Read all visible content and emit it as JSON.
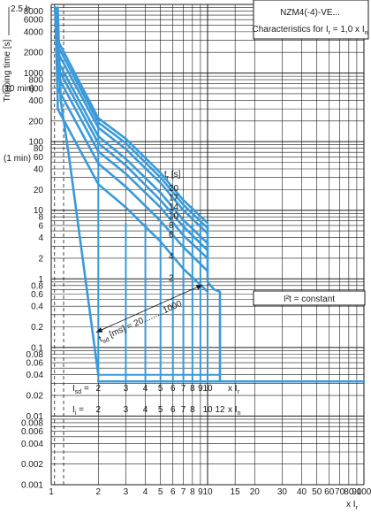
{
  "chart_data": {
    "type": "line",
    "title": "NZM4(-4)-VE...",
    "subtitle": "Characteristics for I",
    "subtitle_sub": "r",
    "subtitle_mid": " = 1,0 x I",
    "subtitle_sub2": "n",
    "ylabel": "Tripping time [s]",
    "y_top_label": "2.5 h",
    "y_extra_labels": [
      "(10 min)",
      "(1 min)"
    ],
    "xlabel": "x I",
    "xlabel_sub": "r",
    "x_scale": "log",
    "y_scale": "log",
    "xlim": [
      1,
      100
    ],
    "ylim": [
      0.001,
      10000
    ],
    "x_ticks": [
      "1",
      "2",
      "3",
      "4",
      "5",
      "6",
      "7",
      "8",
      "9",
      "10",
      "15",
      "20",
      "30",
      "40",
      "50",
      "60",
      "70",
      "80",
      "90",
      "100"
    ],
    "y_ticks": [
      "8000",
      "6000",
      "4000",
      "2000",
      "1000",
      "800",
      "600",
      "400",
      "200",
      "100",
      "80",
      "60",
      "40",
      "20",
      "10",
      "8",
      "6",
      "4",
      "2",
      "1",
      "0.8",
      "0.6",
      "0.4",
      "0.2",
      "0.1",
      "0.08",
      "0.06",
      "0.04",
      "0.02",
      "0.01",
      "0.008",
      "0.006",
      "0.004",
      "0.002",
      "0.001"
    ],
    "tr_label": "t",
    "tr_label_sub": "r",
    "tr_label_unit": " [s]",
    "tr_values": [
      "20",
      "17",
      "14",
      "10",
      "8",
      "6",
      "4",
      "2"
    ],
    "tsd_label": "t",
    "tsd_label_sub": "sd",
    "tsd_label_rest": " [ms] =   20.........1000",
    "i2t_label": "I²t = constant",
    "isd_row": {
      "label": "I",
      "label_sub": "sd",
      "eq": " =",
      "values": [
        "2",
        "3",
        "4",
        "5",
        "6",
        "7",
        "8",
        "9",
        "10"
      ],
      "unit": "x I",
      "unit_sub": "r"
    },
    "ii_row": {
      "label": "I",
      "label_sub": "i",
      "eq": " =",
      "values": [
        "2",
        "3",
        "4",
        "5",
        "6",
        "7",
        "8",
        "10",
        "12"
      ],
      "unit": "x I",
      "unit_sub": "n"
    },
    "series": [
      {
        "tr": 20,
        "values": [
          [
            1.1,
            3000
          ],
          [
            2,
            220
          ],
          [
            3,
            110
          ],
          [
            5,
            35
          ],
          [
            7,
            14
          ],
          [
            10,
            6.5
          ]
        ]
      },
      {
        "tr": 17,
        "values": [
          [
            1.1,
            2500
          ],
          [
            2,
            190
          ],
          [
            3,
            95
          ],
          [
            5,
            30
          ],
          [
            7,
            12
          ],
          [
            10,
            5.5
          ]
        ]
      },
      {
        "tr": 14,
        "values": [
          [
            1.1,
            2000
          ],
          [
            2,
            160
          ],
          [
            3,
            78
          ],
          [
            5,
            25
          ],
          [
            7,
            10
          ],
          [
            10,
            4.6
          ]
        ]
      },
      {
        "tr": 10,
        "values": [
          [
            1.1,
            1500
          ],
          [
            2,
            120
          ],
          [
            3,
            56
          ],
          [
            5,
            18
          ],
          [
            7,
            7.2
          ],
          [
            10,
            3.3
          ]
        ]
      },
      {
        "tr": 8,
        "values": [
          [
            1.1,
            1200
          ],
          [
            2,
            95
          ],
          [
            3,
            45
          ],
          [
            5,
            14
          ],
          [
            7,
            5.8
          ],
          [
            10,
            2.6
          ]
        ]
      },
      {
        "tr": 6,
        "values": [
          [
            1.1,
            900
          ],
          [
            2,
            72
          ],
          [
            3,
            34
          ],
          [
            5,
            11
          ],
          [
            7,
            4.3
          ],
          [
            10,
            2.0
          ]
        ]
      },
      {
        "tr": 4,
        "values": [
          [
            1.1,
            600
          ],
          [
            2,
            48
          ],
          [
            3,
            22
          ],
          [
            5,
            7
          ],
          [
            7,
            2.9
          ],
          [
            10,
            1.3
          ]
        ]
      },
      {
        "tr": 2,
        "values": [
          [
            1.1,
            300
          ],
          [
            2,
            24
          ],
          [
            3,
            11
          ],
          [
            5,
            3.5
          ],
          [
            7,
            1.4
          ],
          [
            10,
            0.65
          ]
        ]
      }
    ],
    "isd_verticals": [
      2,
      3,
      4,
      5,
      6,
      7,
      8,
      9,
      10
    ],
    "min_time_band": [
      0.032,
      0.04
    ],
    "grid": true
  }
}
